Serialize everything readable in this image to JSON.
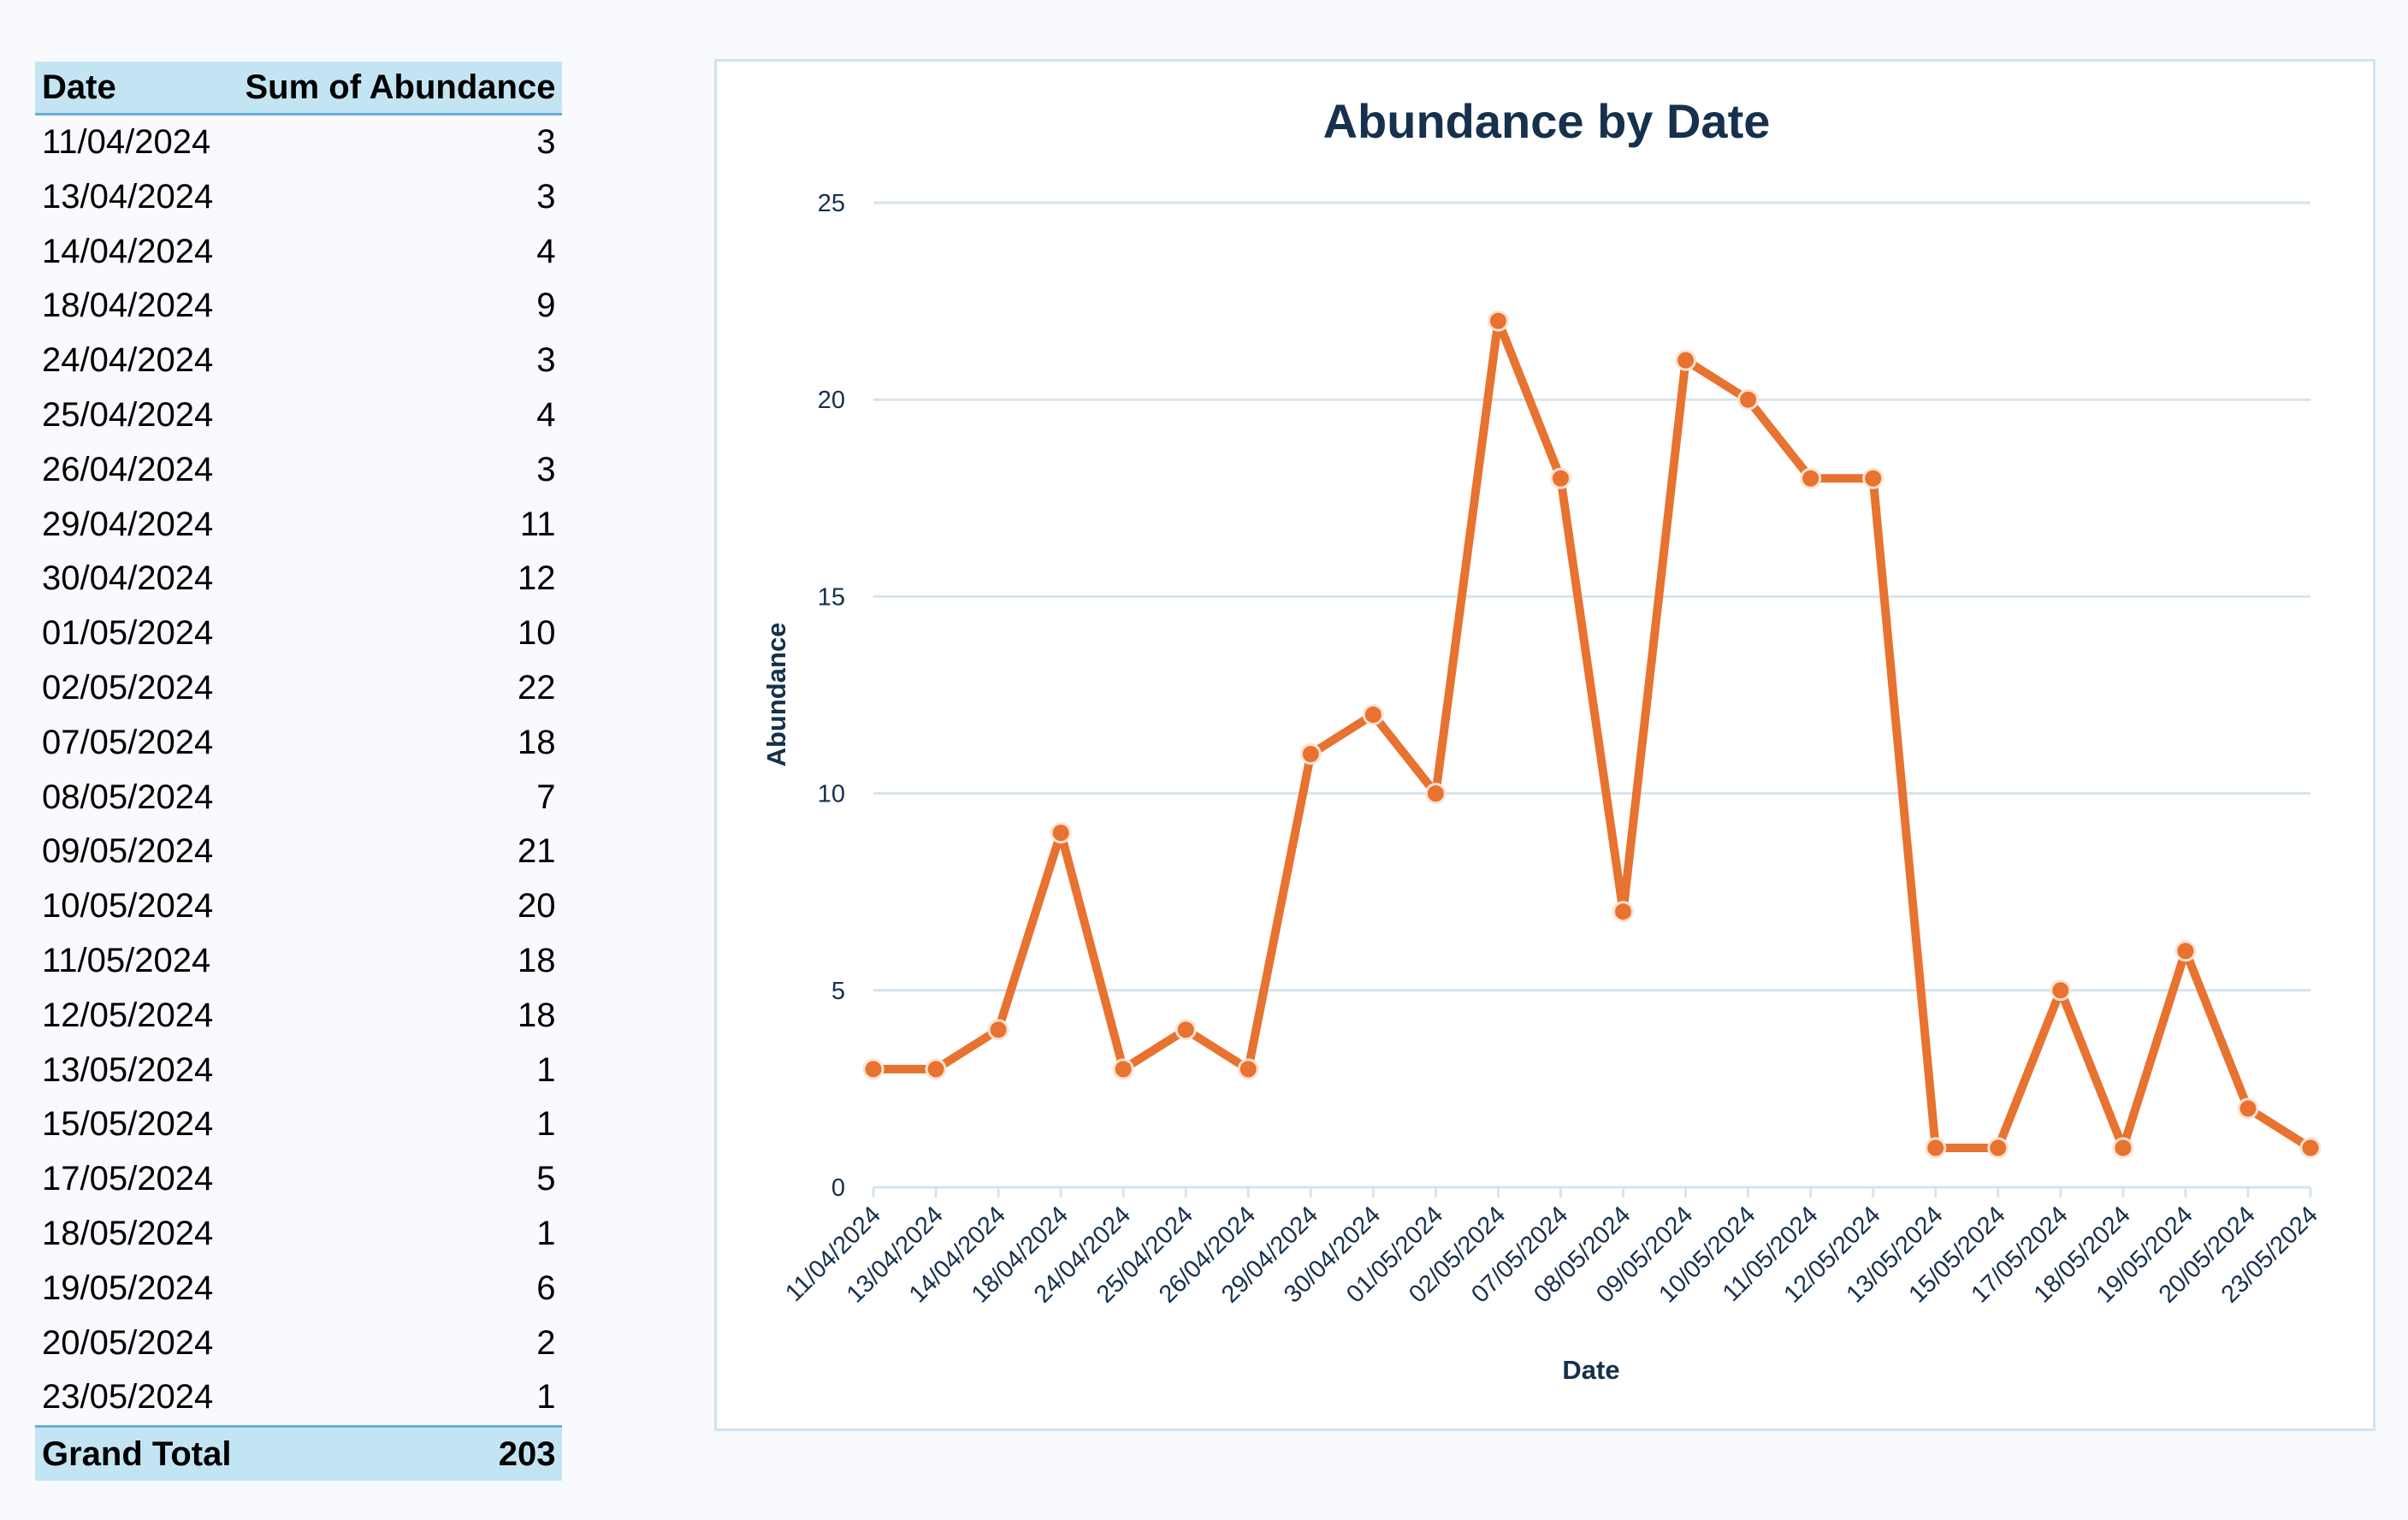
{
  "pivot": {
    "header": {
      "date": "Date",
      "sum": "Sum of Abundance"
    },
    "rows": [
      {
        "date": "11/04/2024",
        "value": "3"
      },
      {
        "date": "13/04/2024",
        "value": "3"
      },
      {
        "date": "14/04/2024",
        "value": "4"
      },
      {
        "date": "18/04/2024",
        "value": "9"
      },
      {
        "date": "24/04/2024",
        "value": "3"
      },
      {
        "date": "25/04/2024",
        "value": "4"
      },
      {
        "date": "26/04/2024",
        "value": "3"
      },
      {
        "date": "29/04/2024",
        "value": "11"
      },
      {
        "date": "30/04/2024",
        "value": "12"
      },
      {
        "date": "01/05/2024",
        "value": "10"
      },
      {
        "date": "02/05/2024",
        "value": "22"
      },
      {
        "date": "07/05/2024",
        "value": "18"
      },
      {
        "date": "08/05/2024",
        "value": "7"
      },
      {
        "date": "09/05/2024",
        "value": "21"
      },
      {
        "date": "10/05/2024",
        "value": "20"
      },
      {
        "date": "11/05/2024",
        "value": "18"
      },
      {
        "date": "12/05/2024",
        "value": "18"
      },
      {
        "date": "13/05/2024",
        "value": "1"
      },
      {
        "date": "15/05/2024",
        "value": "1"
      },
      {
        "date": "17/05/2024",
        "value": "5"
      },
      {
        "date": "18/05/2024",
        "value": "1"
      },
      {
        "date": "19/05/2024",
        "value": "6"
      },
      {
        "date": "20/05/2024",
        "value": "2"
      },
      {
        "date": "23/05/2024",
        "value": "1"
      }
    ],
    "total": {
      "label": "Grand Total",
      "value": "203"
    }
  },
  "chart_data": {
    "type": "line",
    "title": "Abundance by Date",
    "xlabel": "Date",
    "ylabel": "Abundance",
    "categories": [
      "11/04/2024",
      "13/04/2024",
      "14/04/2024",
      "18/04/2024",
      "24/04/2024",
      "25/04/2024",
      "26/04/2024",
      "29/04/2024",
      "30/04/2024",
      "01/05/2024",
      "02/05/2024",
      "07/05/2024",
      "08/05/2024",
      "09/05/2024",
      "10/05/2024",
      "11/05/2024",
      "12/05/2024",
      "13/05/2024",
      "15/05/2024",
      "17/05/2024",
      "18/05/2024",
      "19/05/2024",
      "20/05/2024",
      "23/05/2024"
    ],
    "series": [
      {
        "values": [
          3,
          3,
          4,
          9,
          3,
          4,
          3,
          11,
          12,
          10,
          22,
          18,
          7,
          21,
          20,
          18,
          18,
          1,
          1,
          5,
          1,
          6,
          2,
          1
        ]
      }
    ],
    "ylim": [
      0,
      25
    ],
    "yticks": [
      0,
      5,
      10,
      15,
      20,
      25
    ],
    "grid": true,
    "legend": "none",
    "colors": {
      "line": "#e8722f",
      "marker_edge": "#fbe3d4",
      "grid": "#d6e4ef",
      "title": "#16304d",
      "axis_text": "#16304d"
    }
  }
}
